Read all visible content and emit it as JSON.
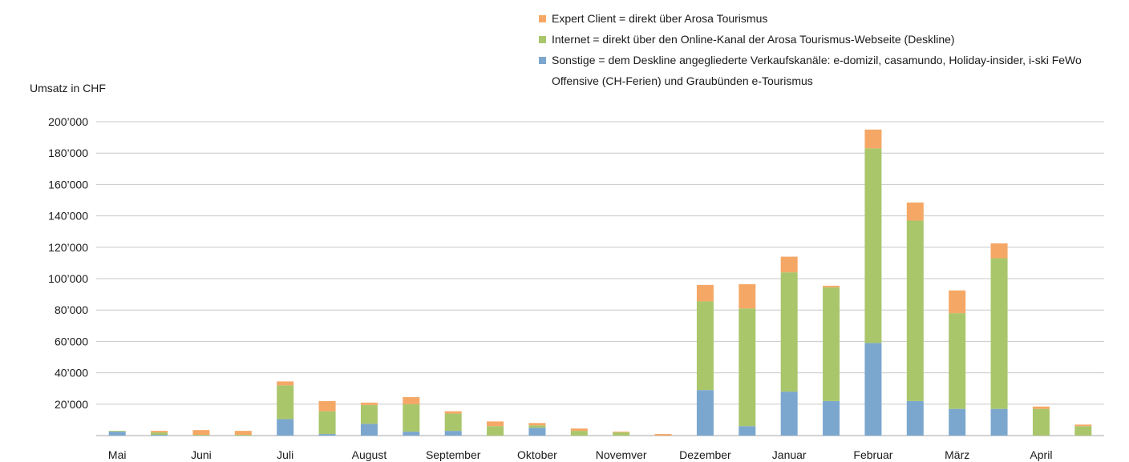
{
  "chart_data": {
    "type": "bar",
    "stacked": true,
    "ylabel": "Umsatz in CHF",
    "ylim": [
      0,
      200000
    ],
    "yticks": [
      20000,
      40000,
      60000,
      80000,
      100000,
      120000,
      140000,
      160000,
      180000,
      200000
    ],
    "ytick_labels": [
      "20’000",
      "40’000",
      "60’000",
      "80’000",
      "100’000",
      "120’000",
      "140’000",
      "160’000",
      "180’000",
      "200’000"
    ],
    "x_labels": [
      "Mai",
      "Juni",
      "Juli",
      "August",
      "September",
      "Oktober",
      "Novemver",
      "Dezember",
      "Januar",
      "Februar",
      "März",
      "April"
    ],
    "bars_per_label": 2,
    "grid": true,
    "legend_position": "top-right",
    "series": [
      {
        "name": "Sonstige = dem Deskline angegliederte Verkaufskanäle: e-domizil, casamundo, Holiday-insider, i-ski FeWo Offensive (CH-Ferien) und Graubünden e-Tourismus",
        "color": "#7ba7cf",
        "values": [
          2500,
          500,
          0,
          0,
          10500,
          1000,
          7500,
          2500,
          3000,
          0,
          5000,
          0,
          0,
          0,
          29000,
          6000,
          28000,
          22000,
          59000,
          22000,
          17000,
          17000,
          0,
          0
        ]
      },
      {
        "name": "Internet = direkt über den Online-Kanal der Arosa Tourismus-Webseite (Deskline)",
        "color": "#a9c66b",
        "values": [
          500,
          1500,
          500,
          500,
          21500,
          14500,
          12000,
          17500,
          11000,
          6000,
          1500,
          3000,
          2000,
          0,
          56500,
          75000,
          76000,
          72500,
          124000,
          115000,
          61000,
          96000,
          17000,
          6000
        ]
      },
      {
        "name": "Expert Client = direkt über Arosa Tourismus",
        "color": "#f5a866",
        "values": [
          0,
          1000,
          3000,
          2500,
          2500,
          6500,
          1500,
          4500,
          1500,
          3000,
          1500,
          1500,
          500,
          1000,
          10500,
          15500,
          10000,
          1000,
          12000,
          11500,
          14500,
          9500,
          1500,
          1000
        ]
      }
    ],
    "legend_order": [
      2,
      1,
      0
    ]
  }
}
